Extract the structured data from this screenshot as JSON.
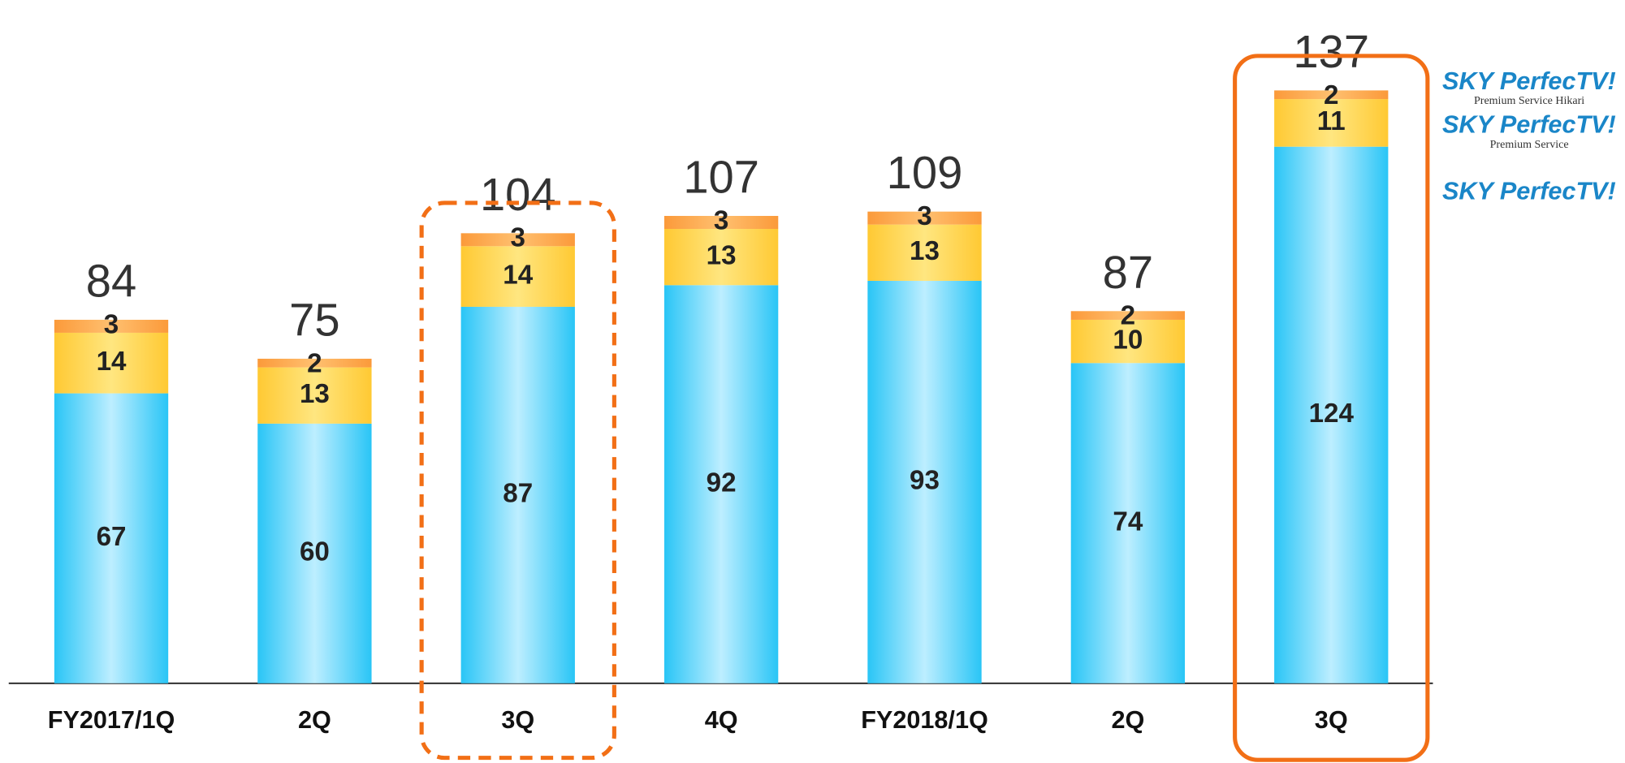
{
  "chart_data": {
    "type": "stacked-bar",
    "categories": [
      "FY2017/1Q",
      "2Q",
      "3Q",
      "4Q",
      "FY2018/1Q",
      "2Q",
      "3Q"
    ],
    "series": [
      {
        "name": "SKY PerfecTV!",
        "color": "#29c5f6",
        "values": [
          67,
          60,
          87,
          92,
          93,
          74,
          124
        ]
      },
      {
        "name": "SKY PerfecTV!",
        "sublabel": "Premium Service",
        "color": "#ffc933",
        "values": [
          14,
          13,
          14,
          13,
          13,
          10,
          11
        ]
      },
      {
        "name": "SKY PerfecTV!",
        "sublabel": "Premium Service Hikari",
        "color": "#fb9a3a",
        "values": [
          3,
          2,
          3,
          3,
          3,
          2,
          2
        ]
      }
    ],
    "totals": [
      84,
      75,
      104,
      107,
      109,
      87,
      137
    ],
    "highlight": [
      {
        "index": 2,
        "style": "dashed"
      },
      {
        "index": 6,
        "style": "solid"
      }
    ],
    "highlight_color": "#f26f16"
  }
}
